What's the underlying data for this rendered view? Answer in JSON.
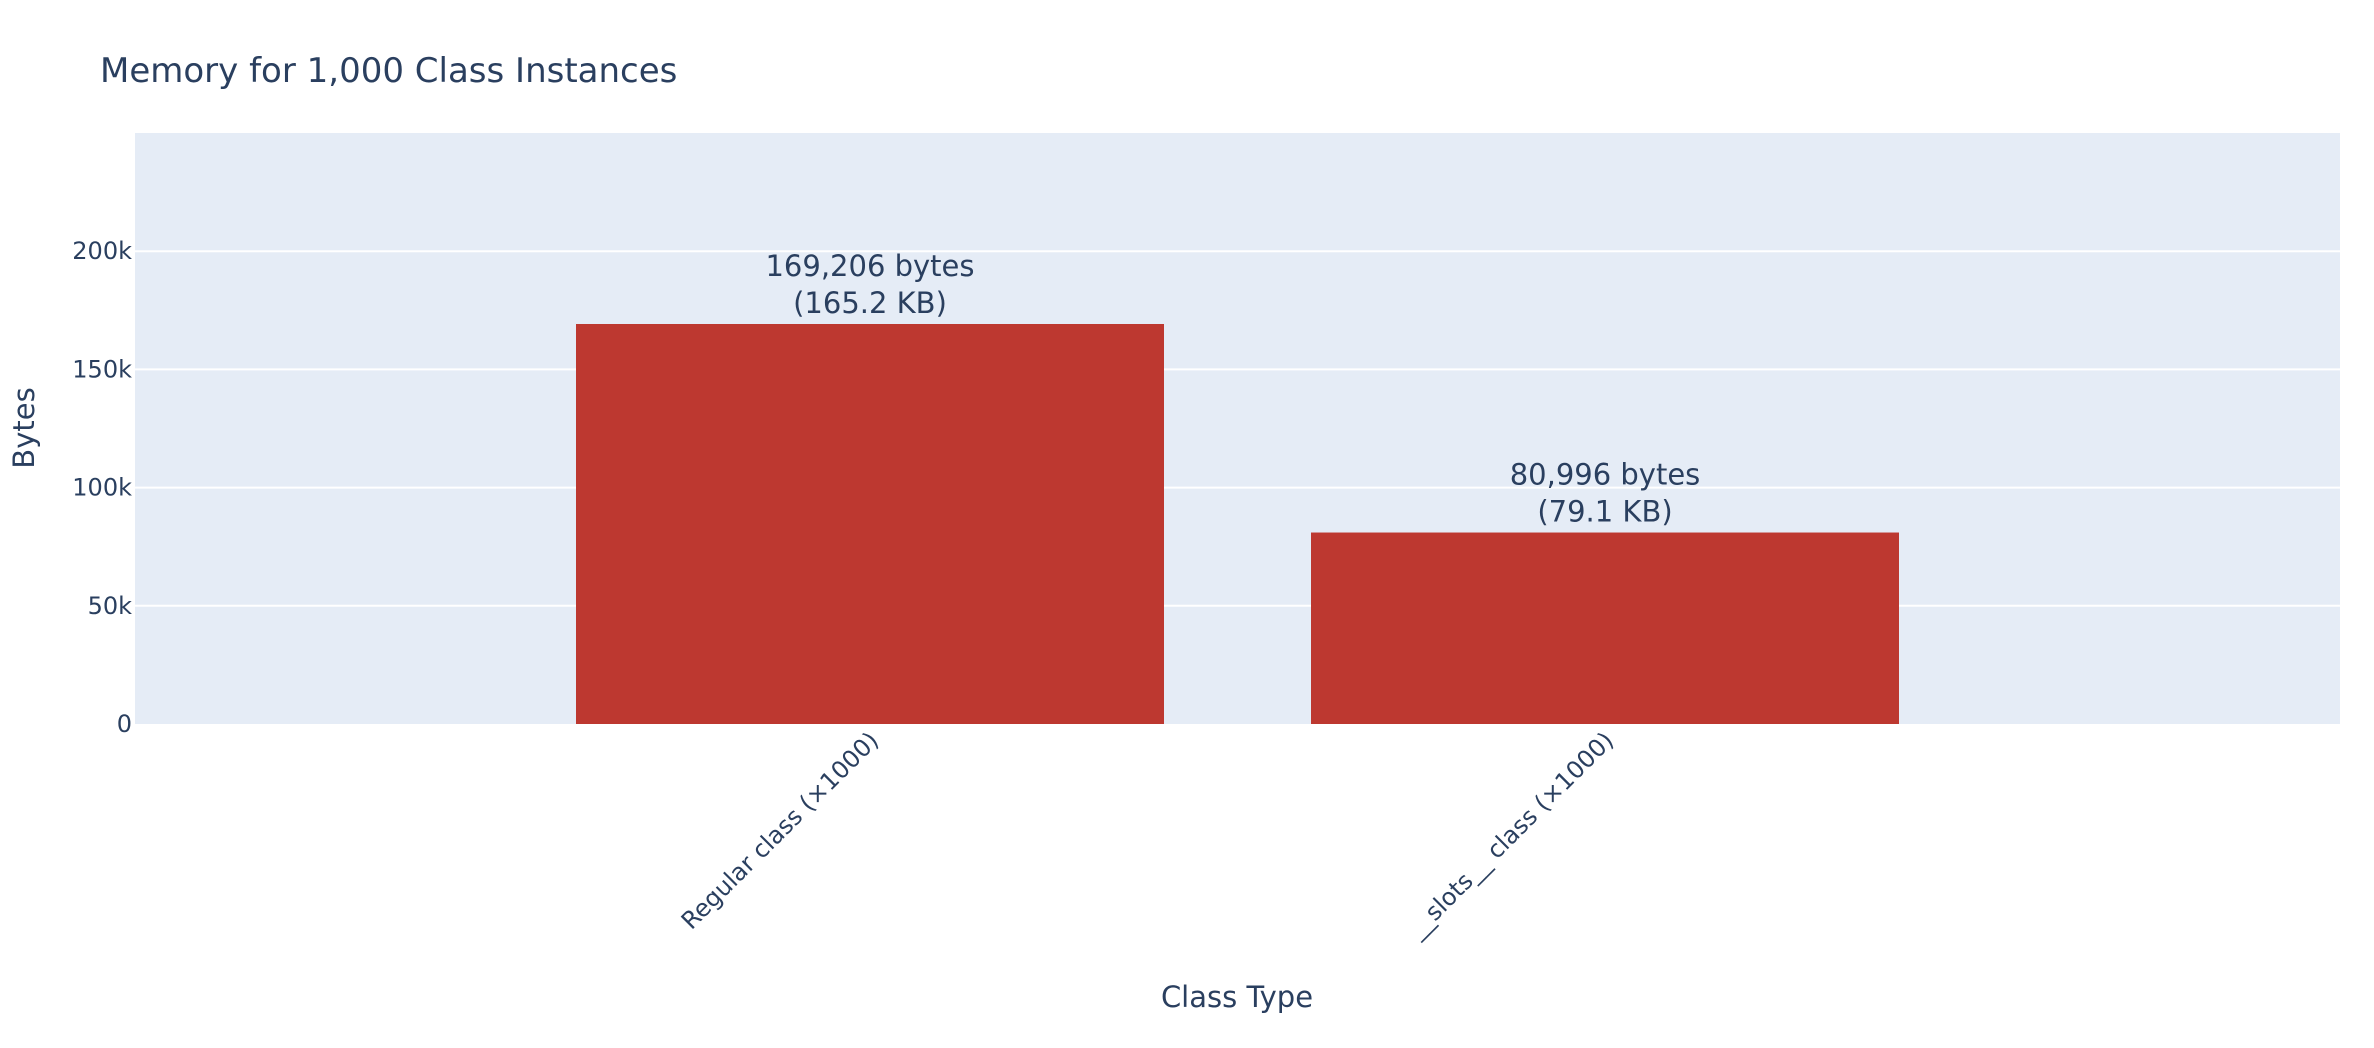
{
  "chart_data": {
    "type": "bar",
    "title": "Memory for 1,000 Class Instances",
    "xlabel": "Class Type",
    "ylabel": "Bytes",
    "categories": [
      "Regular class (×1000)",
      "__slots__ class (×1000)"
    ],
    "values": [
      169206,
      80996
    ],
    "data_labels": [
      [
        "169,206 bytes",
        "(165.2 KB)"
      ],
      [
        "80,996 bytes",
        "(79.1 KB)"
      ]
    ],
    "ylim": [
      0,
      250000
    ],
    "yticks": [
      0,
      50000,
      100000,
      150000,
      200000
    ],
    "ytick_labels": [
      "0",
      "50k",
      "100k",
      "150k",
      "200k"
    ],
    "grid": true,
    "colors": {
      "bar": "#bd3830",
      "plot_background": "#e5ecf6",
      "gridline": "#ffffff",
      "text": "#2a3f5f"
    }
  }
}
